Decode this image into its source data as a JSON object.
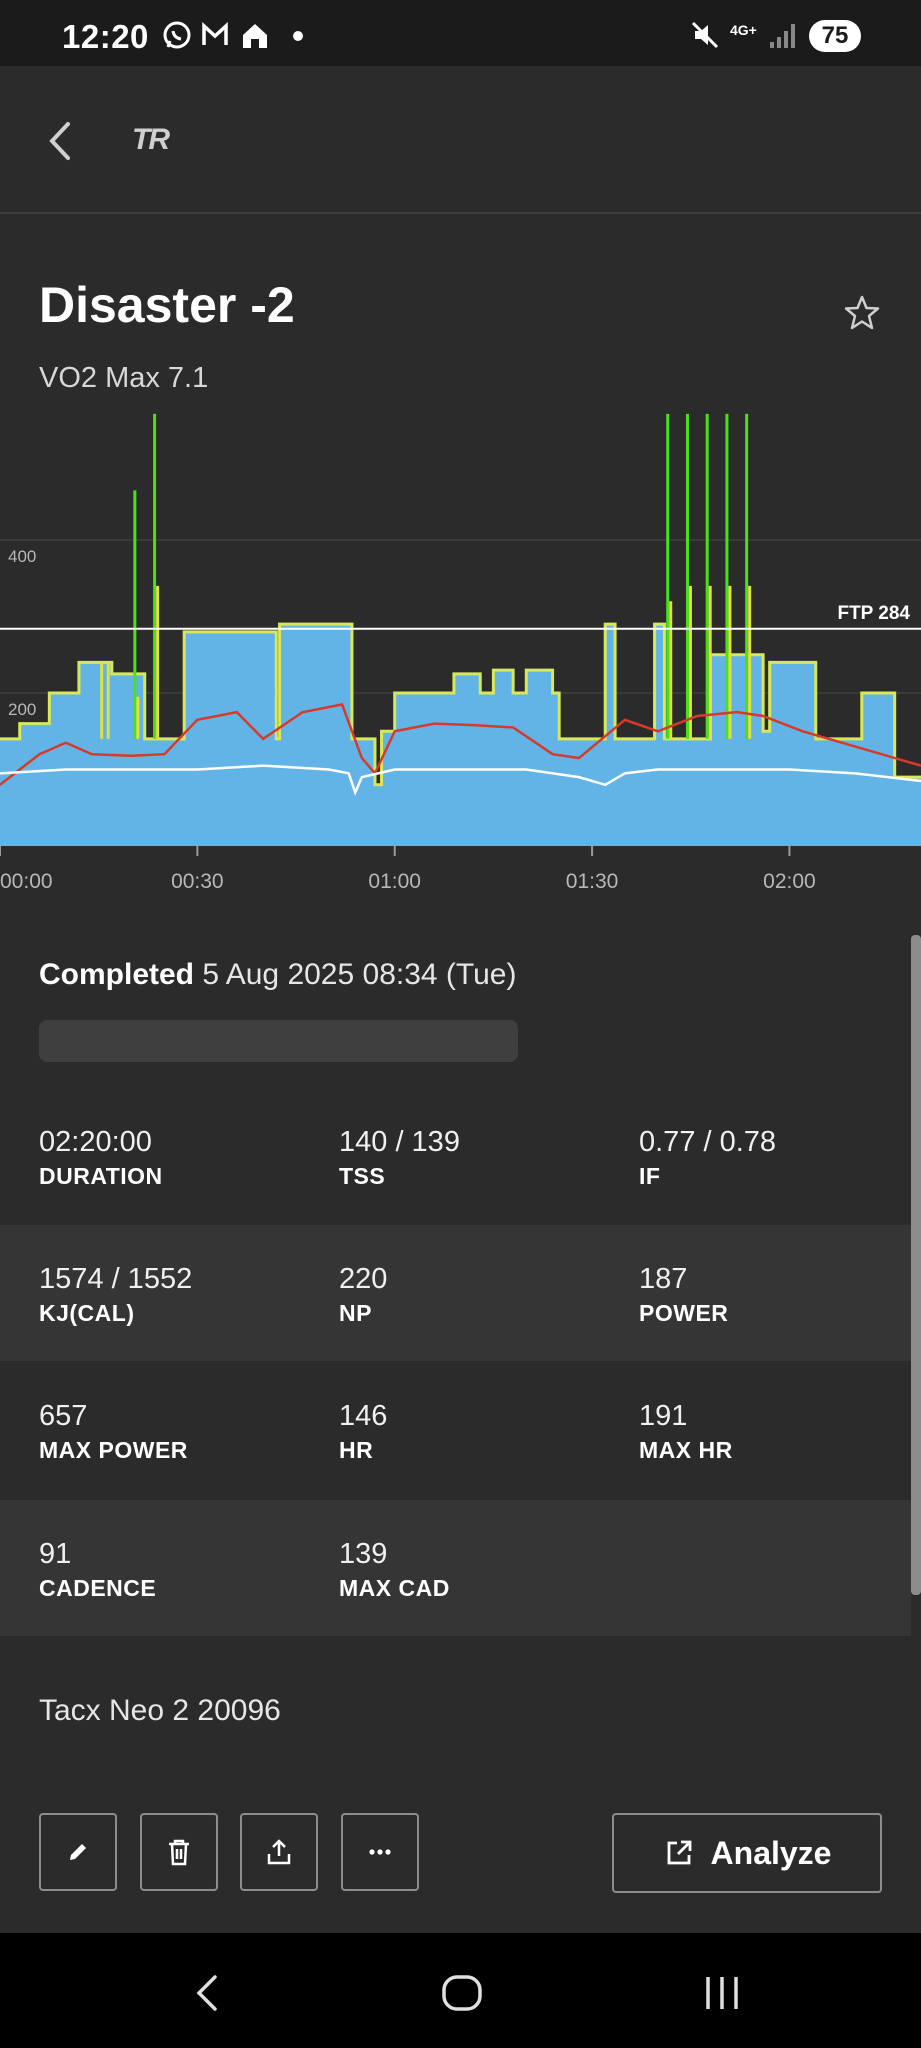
{
  "status_bar": {
    "time": "12:20",
    "battery": "75",
    "network": "4G+",
    "icons": [
      "whatsapp-icon",
      "gmail-icon",
      "home-icon",
      "dot-icon",
      "mute-icon",
      "signal-icon"
    ]
  },
  "app_bar": {
    "logo": "TR"
  },
  "workout": {
    "title": "Disaster -2",
    "subtitle": "VO2 Max 7.1"
  },
  "chart_data": {
    "type": "area",
    "y_ticks": [
      "400",
      "200"
    ],
    "x_ticks": [
      "00:00",
      "00:30",
      "01:00",
      "01:30",
      "02:00"
    ],
    "ftp_label": "FTP 284",
    "ftp": 284,
    "x_range_min": [
      0,
      140
    ],
    "y_range": [
      0,
      570
    ],
    "series": [
      {
        "color": "#63b4e6",
        "x": [
          0,
          3,
          7.5,
          9.5,
          12,
          17,
          22,
          27,
          28,
          37,
          42,
          42.5,
          53,
          53.5,
          56,
          57,
          58,
          60,
          67,
          69,
          73,
          75,
          78,
          80,
          84,
          85,
          92,
          93,
          93.5,
          99,
          99.5,
          101,
          104,
          108,
          111,
          116,
          117,
          123,
          124,
          130,
          131,
          136,
          140
        ],
        "y": [
          140,
          160,
          200,
          200,
          240,
          225,
          140,
          140,
          280,
          280,
          140,
          290,
          290,
          140,
          140,
          80,
          150,
          200,
          200,
          225,
          200,
          230,
          200,
          230,
          200,
          140,
          290,
          290,
          140,
          140,
          290,
          140,
          140,
          250,
          250,
          150,
          240,
          240,
          140,
          140,
          200,
          90,
          90
        ]
      },
      {
        "color": "#4ae01a",
        "x": [
          20.5,
          23.5,
          101.5,
          104.5,
          107.5,
          110.5,
          113.5
        ],
        "y": [
          465,
          565,
          565,
          565,
          565,
          565,
          565
        ]
      },
      {
        "color": "#e0e040",
        "x": [
          15,
          16,
          20.5,
          23.5,
          101.5,
          104.5,
          107.5,
          110.5,
          113.5
        ],
        "y": [
          240,
          240,
          195,
          340,
          320,
          340,
          340,
          340,
          340
        ]
      },
      {
        "color": "#d63a2a",
        "x": [
          0,
          6,
          10,
          14,
          20,
          25,
          30,
          36,
          40,
          46,
          52,
          55,
          57,
          60,
          66,
          72,
          78,
          84,
          88,
          95,
          100,
          106,
          112,
          116,
          122,
          128,
          134,
          140
        ],
        "y": [
          80,
          120,
          135,
          120,
          118,
          120,
          165,
          175,
          140,
          175,
          185,
          115,
          95,
          150,
          160,
          158,
          155,
          120,
          115,
          165,
          150,
          170,
          175,
          170,
          150,
          135,
          120,
          105
        ]
      },
      {
        "color": "#ffffff",
        "x": [
          0,
          10,
          20,
          30,
          40,
          50,
          53,
          54,
          55,
          60,
          70,
          80,
          88,
          92,
          95,
          100,
          110,
          120,
          130,
          140
        ],
        "y": [
          95,
          100,
          100,
          100,
          105,
          100,
          95,
          70,
          90,
          100,
          100,
          100,
          90,
          80,
          95,
          100,
          100,
          100,
          95,
          85
        ]
      }
    ]
  },
  "summary": {
    "completed_label": "Completed",
    "completed_value": "5 Aug 2025 08:34 (Tue)",
    "stats": [
      {
        "value": "02:20:00",
        "label": "DURATION"
      },
      {
        "value": "140 / 139",
        "label": "TSS"
      },
      {
        "value": "0.77 / 0.78",
        "label": "IF"
      },
      {
        "value": "1574 / 1552",
        "label": "KJ(CAL)"
      },
      {
        "value": "220",
        "label": "NP"
      },
      {
        "value": "187",
        "label": "POWER"
      },
      {
        "value": "657",
        "label": "MAX POWER"
      },
      {
        "value": "146",
        "label": "HR"
      },
      {
        "value": "191",
        "label": "MAX HR"
      },
      {
        "value": "91",
        "label": "CADENCE"
      },
      {
        "value": "139",
        "label": "MAX CAD"
      }
    ],
    "device": "Tacx Neo 2 20096"
  },
  "actions": {
    "buttons": [
      "edit-icon",
      "trash-icon",
      "share-icon",
      "more-icon"
    ],
    "analyze_label": "Analyze"
  },
  "nav_bar": {
    "buttons": [
      "back-icon",
      "home-icon",
      "recents-icon"
    ]
  }
}
